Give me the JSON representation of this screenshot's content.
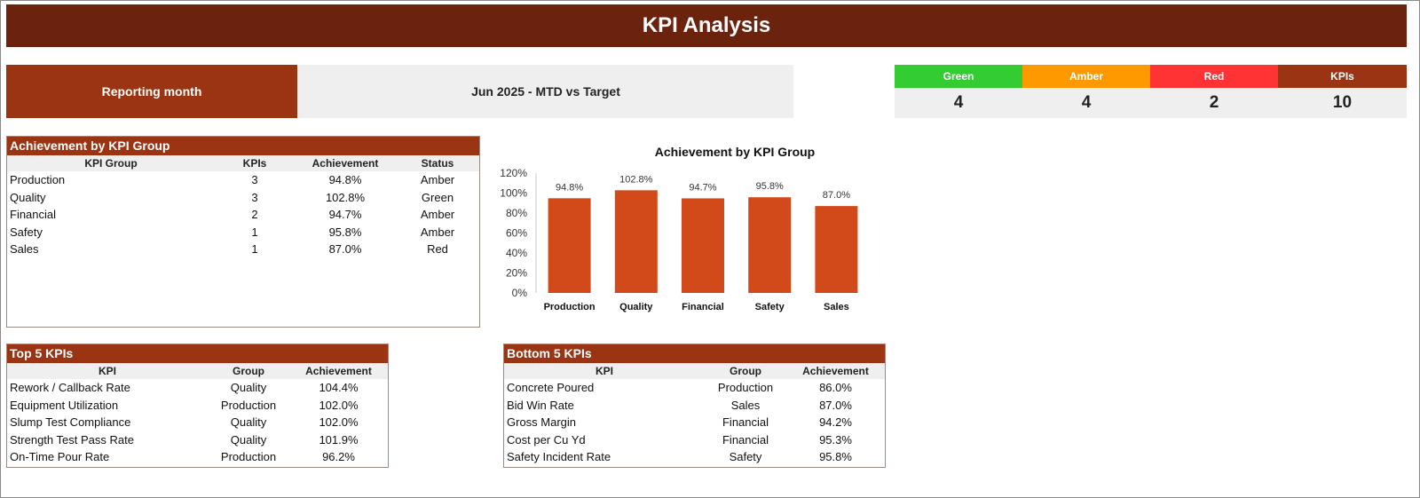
{
  "header": {
    "title": "KPI Analysis"
  },
  "reporting": {
    "label": "Reporting month",
    "value": "Jun 2025   -   MTD vs Target"
  },
  "status_summary": [
    {
      "label": "Green",
      "value": "4",
      "color": "#33cc33"
    },
    {
      "label": "Amber",
      "value": "4",
      "color": "#ff9900"
    },
    {
      "label": "Red",
      "value": "2",
      "color": "#ff3333"
    },
    {
      "label": "KPIs",
      "value": "10",
      "color": "#9b3412"
    }
  ],
  "group_table": {
    "title": "Achievement by KPI Group",
    "columns": [
      "KPI Group",
      "KPIs",
      "Achievement",
      "Status"
    ],
    "rows": [
      {
        "group": "Production",
        "kpis": "3",
        "achievement": "94.8%",
        "status": "Amber"
      },
      {
        "group": "Quality",
        "kpis": "3",
        "achievement": "102.8%",
        "status": "Green"
      },
      {
        "group": "Financial",
        "kpis": "2",
        "achievement": "94.7%",
        "status": "Amber"
      },
      {
        "group": "Safety",
        "kpis": "1",
        "achievement": "95.8%",
        "status": "Amber"
      },
      {
        "group": "Sales",
        "kpis": "1",
        "achievement": "87.0%",
        "status": "Red"
      }
    ]
  },
  "top_table": {
    "title": "Top 5 KPIs",
    "columns": [
      "KPI",
      "Group",
      "Achievement"
    ],
    "rows": [
      {
        "kpi": "Rework / Callback Rate",
        "group": "Quality",
        "achievement": "104.4%"
      },
      {
        "kpi": "Equipment Utilization",
        "group": "Production",
        "achievement": "102.0%"
      },
      {
        "kpi": "Slump Test Compliance",
        "group": "Quality",
        "achievement": "102.0%"
      },
      {
        "kpi": "Strength Test Pass Rate",
        "group": "Quality",
        "achievement": "101.9%"
      },
      {
        "kpi": "On-Time Pour Rate",
        "group": "Production",
        "achievement": "96.2%"
      }
    ]
  },
  "bottom_table": {
    "title": "Bottom 5 KPIs",
    "columns": [
      "KPI",
      "Group",
      "Achievement"
    ],
    "rows": [
      {
        "kpi": "Concrete Poured",
        "group": "Production",
        "achievement": "86.0%"
      },
      {
        "kpi": "Bid Win Rate",
        "group": "Sales",
        "achievement": "87.0%"
      },
      {
        "kpi": "Gross Margin",
        "group": "Financial",
        "achievement": "94.2%"
      },
      {
        "kpi": "Cost per Cu Yd",
        "group": "Financial",
        "achievement": "95.3%"
      },
      {
        "kpi": "Safety Incident Rate",
        "group": "Safety",
        "achievement": "95.8%"
      }
    ]
  },
  "chart_data": {
    "type": "bar",
    "title": "Achievement by KPI Group",
    "categories": [
      "Production",
      "Quality",
      "Financial",
      "Safety",
      "Sales"
    ],
    "values": [
      94.8,
      102.8,
      94.7,
      95.8,
      87.0
    ],
    "data_labels": [
      "94.8%",
      "102.8%",
      "94.7%",
      "95.8%",
      "87.0%"
    ],
    "yticks": [
      "0%",
      "20%",
      "40%",
      "60%",
      "80%",
      "100%",
      "120%"
    ],
    "ylim": [
      0,
      120
    ],
    "xlabel": "",
    "ylabel": "",
    "bar_color": "#d24a1a",
    "grid": false,
    "legend": "none"
  }
}
